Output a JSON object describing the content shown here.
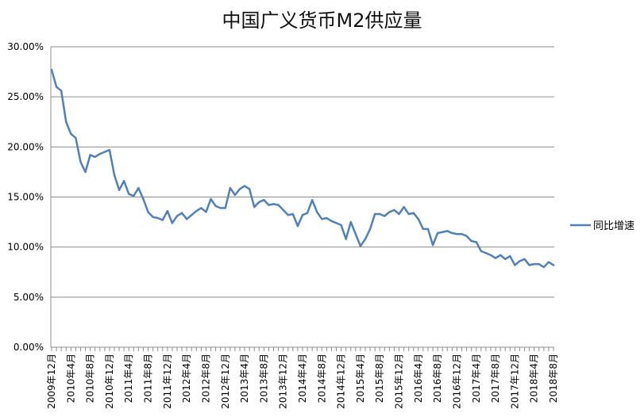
{
  "chart_data": {
    "type": "line",
    "title": "中国广义货币M2供应量",
    "xlabel": "",
    "ylabel": "",
    "ylim": [
      0,
      0.3
    ],
    "y_ticks": [
      "0.00%",
      "5.00%",
      "10.00%",
      "15.00%",
      "20.00%",
      "25.00%",
      "30.00%"
    ],
    "y_tick_values": [
      0,
      0.05,
      0.1,
      0.15,
      0.2,
      0.25,
      0.3
    ],
    "grid": true,
    "legend_position": "right",
    "colors": {
      "series": "#4f81bd",
      "grid": "#8c8c8c",
      "axis": "#8c8c8c",
      "text": "#000000"
    },
    "x_tick_labels": [
      "2009年12月",
      "2010年4月",
      "2010年8月",
      "2010年12月",
      "2011年4月",
      "2011年8月",
      "2011年12月",
      "2012年4月",
      "2012年8月",
      "2012年12月",
      "2013年4月",
      "2013年8月",
      "2013年12月",
      "2014年4月",
      "2014年8月",
      "2014年12月",
      "2015年4月",
      "2015年8月",
      "2015年12月",
      "2016年4月",
      "2016年8月",
      "2016年12月",
      "2017年4月",
      "2017年8月",
      "2017年12月",
      "2018年4月",
      "2018年8月"
    ],
    "series": [
      {
        "name": "同比增速",
        "values": [
          0.277,
          0.26,
          0.256,
          0.225,
          0.213,
          0.209,
          0.185,
          0.175,
          0.192,
          0.19,
          0.193,
          0.195,
          0.197,
          0.172,
          0.157,
          0.166,
          0.153,
          0.151,
          0.159,
          0.148,
          0.135,
          0.13,
          0.129,
          0.127,
          0.136,
          0.124,
          0.131,
          0.134,
          0.128,
          0.132,
          0.136,
          0.139,
          0.135,
          0.148,
          0.141,
          0.139,
          0.139,
          0.159,
          0.152,
          0.158,
          0.161,
          0.158,
          0.14,
          0.145,
          0.147,
          0.142,
          0.143,
          0.142,
          0.137,
          0.132,
          0.133,
          0.121,
          0.132,
          0.134,
          0.147,
          0.135,
          0.128,
          0.129,
          0.126,
          0.124,
          0.122,
          0.108,
          0.125,
          0.113,
          0.101,
          0.108,
          0.118,
          0.133,
          0.133,
          0.131,
          0.135,
          0.137,
          0.133,
          0.14,
          0.133,
          0.134,
          0.128,
          0.118,
          0.118,
          0.102,
          0.114,
          0.115,
          0.116,
          0.114,
          0.113,
          0.113,
          0.111,
          0.106,
          0.105,
          0.096,
          0.094,
          0.092,
          0.089,
          0.092,
          0.088,
          0.091,
          0.082,
          0.086,
          0.088,
          0.082,
          0.083,
          0.083,
          0.08,
          0.085,
          0.082
        ]
      }
    ]
  }
}
